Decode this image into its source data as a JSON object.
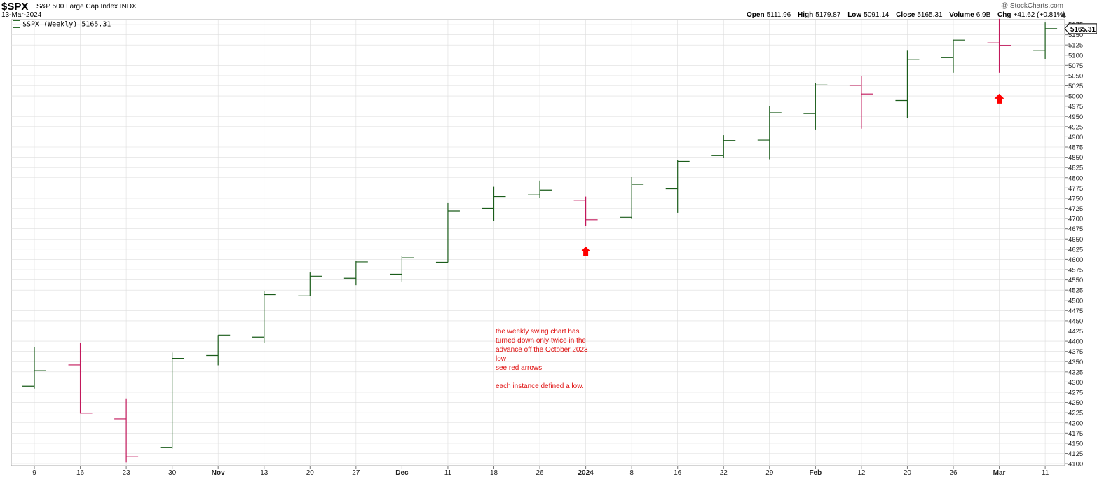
{
  "header": {
    "symbol": "$SPX",
    "name": "S&P 500 Large Cap Index",
    "exchange": "INDX",
    "date": "13-Mar-2024",
    "credit": "@ StockCharts.com",
    "open_label": "Open",
    "open": "5111.96",
    "high_label": "High",
    "high": "5179.87",
    "low_label": "Low",
    "low": "5091.14",
    "close_label": "Close",
    "close": "5165.31",
    "volume_label": "Volume",
    "volume": "6.9B",
    "chg_label": "Chg",
    "chg": "+41.62 (+0.81%)"
  },
  "legend": "$SPX (Weekly) 5165.31",
  "last_price_tag": "5165.31",
  "annotation": "the weekly swing chart has\nturned down only twice in the\nadvance off the October 2023\nlow\nsee red arrows\n\neach instance defined a low.",
  "colors": {
    "up": "#1a5c1a",
    "down": "#c2185b",
    "arrow": "#ff0000",
    "annotation": "#e01010",
    "grid": "#dddddd"
  },
  "chart_data": {
    "type": "ohlc",
    "title": "$SPX (Weekly) 5165.31",
    "y_axis": "right",
    "ylim": [
      4095,
      5187
    ],
    "yticks": [
      4100,
      4125,
      4150,
      4175,
      4200,
      4225,
      4250,
      4275,
      4300,
      4325,
      4350,
      4375,
      4400,
      4425,
      4450,
      4475,
      4500,
      4525,
      4550,
      4575,
      4600,
      4625,
      4650,
      4675,
      4700,
      4725,
      4750,
      4775,
      4800,
      4825,
      4850,
      4875,
      4900,
      4925,
      4950,
      4975,
      5000,
      5025,
      5050,
      5075,
      5100,
      5125,
      5150,
      5175
    ],
    "x_tick_labels": [
      "9",
      "16",
      "Nov",
      "13",
      "20",
      "27",
      "Dec",
      "11",
      "18",
      "26",
      "2024",
      "8",
      "16",
      "22",
      "29",
      "Feb",
      "12",
      "20",
      "26",
      "Mar",
      "11"
    ],
    "bold_tick_labels": [
      "Nov",
      "Dec",
      "2024",
      "Feb",
      "Mar"
    ],
    "bars": [
      {
        "date": "Oct 9",
        "open": 4290,
        "high": 4386,
        "low": 4284,
        "close": 4328
      },
      {
        "date": "Oct 16",
        "open": 4342,
        "high": 4395,
        "low": 4223,
        "close": 4224
      },
      {
        "date": "Oct 23",
        "open": 4210,
        "high": 4260,
        "low": 4103,
        "close": 4117
      },
      {
        "date": "Oct 30",
        "open": 4140,
        "high": 4372,
        "low": 4137,
        "close": 4358
      },
      {
        "date": "Nov 6",
        "open": 4365,
        "high": 4415,
        "low": 4341,
        "close": 4415
      },
      {
        "date": "Nov 13",
        "open": 4410,
        "high": 4522,
        "low": 4395,
        "close": 4514
      },
      {
        "date": "Nov 20",
        "open": 4511,
        "high": 4568,
        "low": 4511,
        "close": 4559
      },
      {
        "date": "Nov 27",
        "open": 4554,
        "high": 4596,
        "low": 4537,
        "close": 4594
      },
      {
        "date": "Dec 4",
        "open": 4564,
        "high": 4609,
        "low": 4546,
        "close": 4604
      },
      {
        "date": "Dec 11",
        "open": 4593,
        "high": 4738,
        "low": 4593,
        "close": 4719
      },
      {
        "date": "Dec 18",
        "open": 4725,
        "high": 4778,
        "low": 4695,
        "close": 4754
      },
      {
        "date": "Dec 26",
        "open": 4758,
        "high": 4793,
        "low": 4751,
        "close": 4770
      },
      {
        "date": "Jan 1",
        "open": 4745,
        "high": 4754,
        "low": 4683,
        "close": 4697
      },
      {
        "date": "Jan 8",
        "open": 4703,
        "high": 4802,
        "low": 4700,
        "close": 4784
      },
      {
        "date": "Jan 16",
        "open": 4773,
        "high": 4843,
        "low": 4714,
        "close": 4840
      },
      {
        "date": "Jan 22",
        "open": 4854,
        "high": 4904,
        "low": 4848,
        "close": 4891
      },
      {
        "date": "Jan 29",
        "open": 4892,
        "high": 4976,
        "low": 4845,
        "close": 4959
      },
      {
        "date": "Feb 5",
        "open": 4957,
        "high": 5031,
        "low": 4918,
        "close": 5027
      },
      {
        "date": "Feb 12",
        "open": 5026,
        "high": 5049,
        "low": 4920,
        "close": 5005
      },
      {
        "date": "Feb 20",
        "open": 4989,
        "high": 5111,
        "low": 4946,
        "close": 5089
      },
      {
        "date": "Feb 26",
        "open": 5094,
        "high": 5138,
        "low": 5057,
        "close": 5137
      },
      {
        "date": "Mar 4",
        "open": 5130,
        "high": 5189,
        "low": 5057,
        "close": 5124
      },
      {
        "date": "Mar 11",
        "open": 5112,
        "high": 5180,
        "low": 5091,
        "close": 5165
      }
    ],
    "arrows_under": [
      "Jan 1",
      "Mar 4"
    ]
  }
}
